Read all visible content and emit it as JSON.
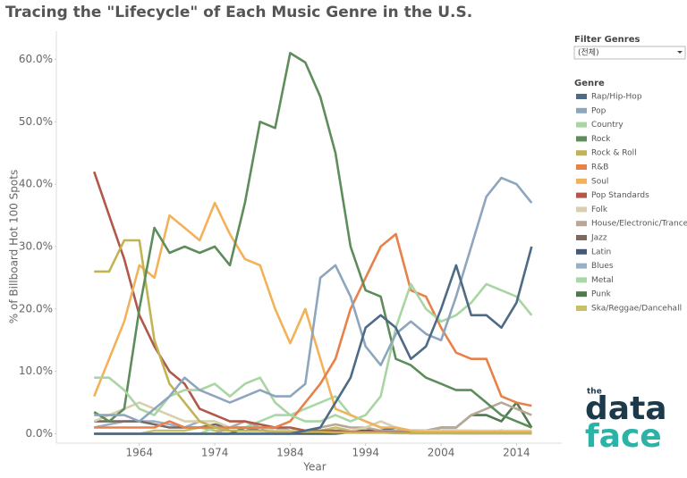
{
  "chart_data": {
    "type": "line",
    "title": "Tracing the \"Lifecycle\" of Each Music Genre in the U.S.",
    "x_label": "Year",
    "y_label": "% of Billboard Hot 100 Spots",
    "legend_title": "Genre",
    "x": [
      1958,
      1960,
      1962,
      1964,
      1966,
      1968,
      1970,
      1972,
      1974,
      1976,
      1978,
      1980,
      1982,
      1984,
      1986,
      1988,
      1990,
      1992,
      1994,
      1996,
      1998,
      2000,
      2002,
      2004,
      2006,
      2008,
      2010,
      2012,
      2014,
      2016
    ],
    "xlim": [
      1953,
      2020
    ],
    "xticks": [
      1964,
      1974,
      1984,
      1994,
      2004,
      2014
    ],
    "ylim": [
      -1.5,
      64.5
    ],
    "yticks": [
      {
        "value": 0,
        "label": "0.0%"
      },
      {
        "value": 10,
        "label": "10.0%"
      },
      {
        "value": 20,
        "label": "20.0%"
      },
      {
        "value": 30,
        "label": "30.0%"
      },
      {
        "value": 40,
        "label": "40.0%"
      },
      {
        "value": 50,
        "label": "50.0%"
      },
      {
        "value": 60,
        "label": "60.0%"
      }
    ],
    "series": [
      {
        "name": "Rap/Hip-Hop",
        "color": "#4e6a86",
        "values": [
          0,
          0,
          0,
          0,
          0,
          0,
          0,
          0,
          0,
          0,
          0,
          0,
          0,
          0,
          0.5,
          1,
          5,
          9,
          17,
          19,
          17,
          12,
          14,
          20,
          27,
          19,
          19,
          17,
          21,
          30
        ]
      },
      {
        "name": "Pop",
        "color": "#8ea6bd",
        "values": [
          3,
          3,
          3,
          2,
          4,
          6,
          9,
          7,
          6,
          5,
          6,
          7,
          6,
          6,
          8,
          25,
          27,
          22,
          14,
          11,
          16,
          18,
          16,
          15,
          22,
          30,
          38,
          41,
          40,
          37
        ]
      },
      {
        "name": "Country",
        "color": "#a8d5a2",
        "values": [
          9,
          9,
          7,
          4,
          3,
          6,
          7,
          7,
          8,
          6,
          8,
          9,
          5,
          3,
          2,
          2,
          3,
          2,
          3,
          6,
          17,
          24,
          20,
          18,
          19,
          21,
          24,
          23,
          22,
          19
        ]
      },
      {
        "name": "Rock",
        "color": "#5e8d5c",
        "values": [
          3.5,
          2,
          4,
          20,
          33,
          29,
          30,
          29,
          30,
          27,
          37,
          50,
          49,
          61,
          59.5,
          54,
          45,
          30,
          23,
          22,
          12,
          11,
          9,
          8,
          7,
          7,
          5,
          3,
          2,
          1
        ]
      },
      {
        "name": "Rock & Roll",
        "color": "#c2b455",
        "values": [
          26,
          26,
          31,
          31,
          15,
          8,
          5,
          2,
          1,
          0.5,
          0.5,
          0.5,
          0.3,
          0.3,
          0.3,
          0.3,
          0.2,
          0.2,
          0.2,
          0.2,
          0.1,
          0.1,
          0.1,
          0.1,
          0.1,
          0.1,
          0.1,
          0.1,
          0.1,
          0.1
        ]
      },
      {
        "name": "R&B",
        "color": "#e8804a",
        "values": [
          1,
          1,
          1,
          1,
          1,
          2,
          1,
          1,
          1,
          1,
          1,
          1,
          1,
          2,
          5,
          8,
          12,
          20,
          25,
          30,
          32,
          23,
          22,
          17,
          13,
          12,
          12,
          6,
          5,
          4.5
        ]
      },
      {
        "name": "Soul",
        "color": "#f2b25a",
        "values": [
          6,
          12,
          18,
          27,
          25,
          35,
          33,
          31,
          37,
          32,
          28,
          27,
          20,
          14.5,
          20,
          12,
          4,
          3,
          2,
          1,
          1,
          0.5,
          0.3,
          0.3,
          0.3,
          0.3,
          0.3,
          0.3,
          0.3,
          0.3
        ]
      },
      {
        "name": "Pop Standards",
        "color": "#b0594a",
        "values": [
          42,
          35,
          28,
          19,
          14,
          10,
          8,
          4,
          3,
          2,
          2,
          1.5,
          1,
          1,
          0.5,
          0.5,
          0.5,
          0.3,
          0.3,
          0.3,
          0.2,
          0.2,
          0.2,
          0.2,
          0.1,
          0.1,
          0.1,
          0.1,
          0.1,
          0.1
        ]
      },
      {
        "name": "Folk",
        "color": "#d9cfaf",
        "values": [
          2,
          3,
          4,
          5,
          4,
          3,
          2,
          2,
          2,
          1,
          1,
          1,
          0.5,
          0.5,
          0.5,
          0.5,
          0.5,
          0.5,
          1,
          2,
          1,
          0.5,
          0.5,
          0.5,
          0.5,
          0.5,
          0.5,
          0.5,
          0.5,
          0.5
        ]
      },
      {
        "name": "House/Electronic/Trance",
        "color": "#b8a898",
        "values": [
          0,
          0,
          0,
          0,
          0,
          0,
          0,
          0,
          0,
          1,
          2,
          1,
          1,
          0.5,
          0.5,
          1,
          1.5,
          1,
          1,
          0.5,
          0.5,
          0.5,
          0.5,
          1,
          1,
          3,
          4,
          5,
          4,
          3
        ]
      },
      {
        "name": "Jazz",
        "color": "#7a6a62",
        "values": [
          2,
          2,
          2,
          2,
          1.5,
          1,
          1,
          1,
          1.5,
          1,
          1,
          0.5,
          1,
          0.5,
          0.5,
          0.3,
          0.3,
          0.2,
          0.2,
          0.2,
          0.2,
          0.1,
          0.1,
          0.1,
          0.1,
          0.1,
          0.1,
          0.1,
          0.1,
          0.1
        ]
      },
      {
        "name": "Latin",
        "color": "#44597a",
        "values": [
          0,
          0,
          0,
          0,
          0,
          0,
          0,
          0,
          0,
          0,
          0,
          0,
          0,
          0,
          0,
          0,
          0,
          0.3,
          0.5,
          0.5,
          1,
          0.5,
          0.5,
          0.5,
          0.5,
          0.3,
          0.3,
          0.5,
          0.3,
          0.3
        ]
      },
      {
        "name": "Blues",
        "color": "#9ab0c8",
        "values": [
          1,
          1.5,
          2,
          2,
          2,
          1.5,
          1,
          2,
          1,
          1,
          1,
          0.5,
          0.5,
          0.5,
          0.3,
          0.3,
          0.3,
          0.2,
          0.2,
          0.2,
          0.2,
          0.1,
          0.1,
          0.1,
          0.1,
          0.1,
          0.1,
          0.1,
          0.1,
          0.1
        ]
      },
      {
        "name": "Metal",
        "color": "#a8d8a8",
        "values": [
          0,
          0,
          0,
          0,
          0,
          0,
          0,
          0,
          1,
          1,
          1,
          2,
          3,
          3,
          4,
          5,
          6,
          3,
          2,
          1,
          0.5,
          0.5,
          0.5,
          0.3,
          0.3,
          0.3,
          0.3,
          0.3,
          0.3,
          0.3
        ]
      },
      {
        "name": "Punk",
        "color": "#4e7a4e",
        "values": [
          0,
          0,
          0,
          0,
          0,
          0,
          0,
          0,
          0,
          0,
          1,
          1,
          1,
          0.5,
          0.5,
          0.5,
          0.5,
          0.5,
          0.5,
          0.5,
          0.5,
          0.5,
          0.5,
          1,
          1,
          3,
          3,
          2,
          5,
          1
        ]
      },
      {
        "name": "Ska/Reggae/Dancehall",
        "color": "#c8c068",
        "values": [
          0,
          0,
          0,
          0,
          0.5,
          0.5,
          0.5,
          1,
          0.5,
          0.5,
          0.5,
          0.5,
          0.5,
          0.5,
          0.5,
          0.5,
          1,
          0.5,
          0.5,
          0.5,
          0.5,
          0.5,
          0.5,
          0.5,
          0.5,
          0.5,
          0.3,
          0.3,
          0.3,
          0.3
        ]
      }
    ]
  },
  "filter": {
    "label": "Filter Genres",
    "value": "(전체)"
  },
  "logo": {
    "top": "the",
    "middle": "data",
    "bottom": "face"
  }
}
